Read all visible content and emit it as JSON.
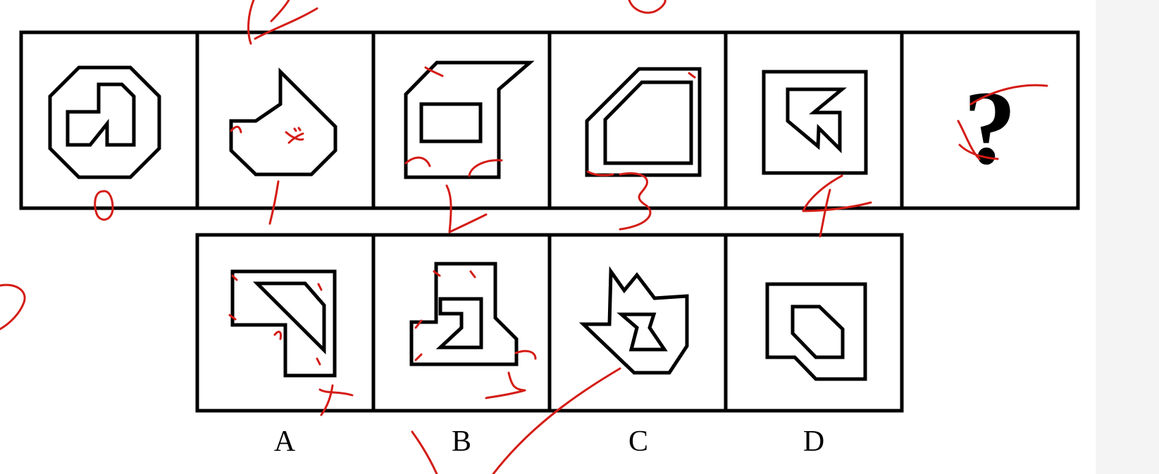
{
  "puzzle": {
    "question_mark": "?",
    "option_labels": [
      "A",
      "B",
      "C",
      "D"
    ],
    "annotations": [
      "0",
      "1",
      "2",
      "3",
      "4"
    ],
    "ink_color": "#d41c16",
    "line_color": "#000000"
  }
}
